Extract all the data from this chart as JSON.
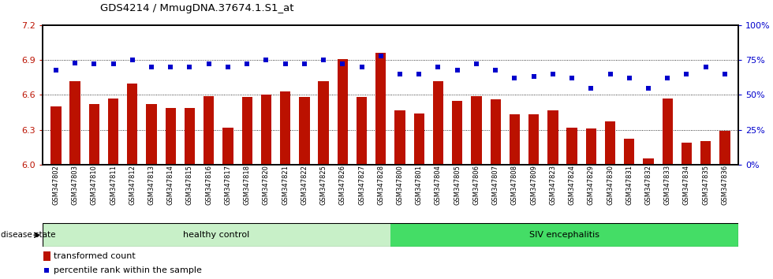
{
  "title": "GDS4214 / MmugDNA.37674.1.S1_at",
  "samples": [
    "GSM347802",
    "GSM347803",
    "GSM347810",
    "GSM347811",
    "GSM347812",
    "GSM347813",
    "GSM347814",
    "GSM347815",
    "GSM347816",
    "GSM347817",
    "GSM347818",
    "GSM347820",
    "GSM347821",
    "GSM347822",
    "GSM347825",
    "GSM347826",
    "GSM347827",
    "GSM347828",
    "GSM347800",
    "GSM347801",
    "GSM347804",
    "GSM347805",
    "GSM347806",
    "GSM347807",
    "GSM347808",
    "GSM347809",
    "GSM347823",
    "GSM347824",
    "GSM347829",
    "GSM347830",
    "GSM347831",
    "GSM347832",
    "GSM347833",
    "GSM347834",
    "GSM347835",
    "GSM347836"
  ],
  "bar_values": [
    6.5,
    6.72,
    6.52,
    6.57,
    6.7,
    6.52,
    6.49,
    6.49,
    6.59,
    6.32,
    6.58,
    6.6,
    6.63,
    6.58,
    6.72,
    6.91,
    6.58,
    6.96,
    6.47,
    6.44,
    6.72,
    6.55,
    6.59,
    6.56,
    6.43,
    6.43,
    6.47,
    6.32,
    6.31,
    6.37,
    6.22,
    6.05,
    6.57,
    6.19,
    6.2,
    6.29
  ],
  "percentile_values": [
    68,
    73,
    72,
    72,
    75,
    70,
    70,
    70,
    72,
    70,
    72,
    75,
    72,
    72,
    75,
    72,
    70,
    78,
    65,
    65,
    70,
    68,
    72,
    68,
    62,
    63,
    65,
    62,
    55,
    65,
    62,
    55,
    62,
    65,
    70,
    65
  ],
  "healthy_count": 18,
  "siv_count": 18,
  "ylim_left": [
    6.0,
    7.2
  ],
  "ylim_right": [
    0,
    100
  ],
  "yticks_left": [
    6.0,
    6.3,
    6.6,
    6.9,
    7.2
  ],
  "yticks_right": [
    0,
    25,
    50,
    75,
    100
  ],
  "bar_color": "#bb1100",
  "dot_color": "#0000cc",
  "healthy_color": "#c8f0c8",
  "siv_color": "#44dd66",
  "bg_color": "#ffffff",
  "grid_color": "#000000",
  "tick_bg_color": "#d8d8d8"
}
